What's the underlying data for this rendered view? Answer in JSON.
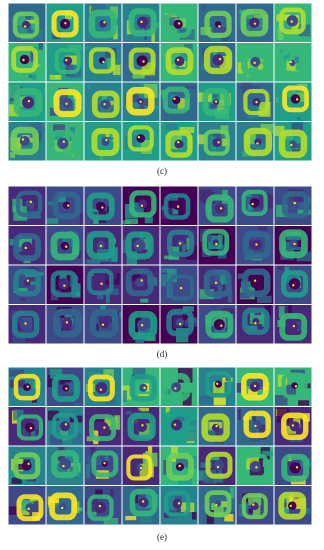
{
  "panels": [
    {
      "label": "(c)"
    },
    {
      "label": "(d)"
    },
    {
      "label": "(e)"
    }
  ]
}
